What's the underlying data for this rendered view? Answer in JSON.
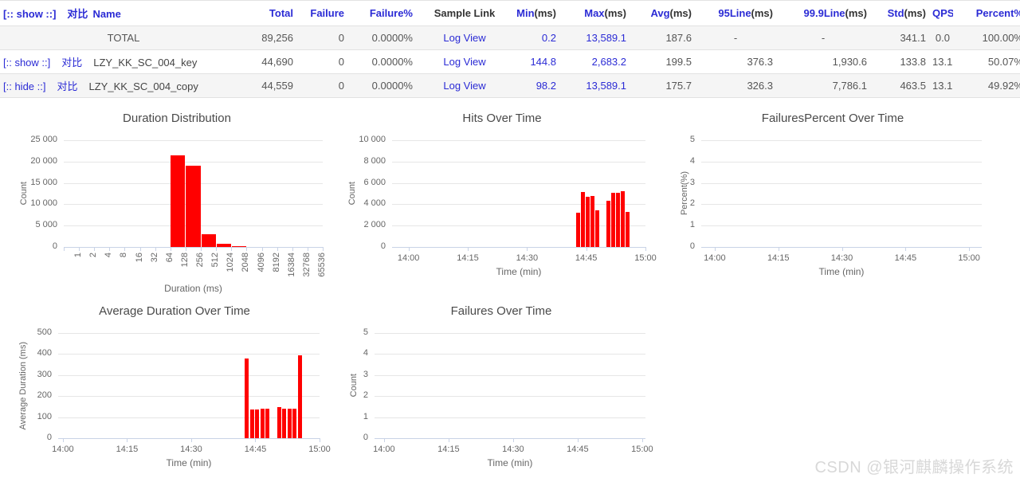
{
  "accent": {
    "link_color": "#2b2bd5",
    "bar_color": "#ff0000"
  },
  "table": {
    "header": {
      "show_label": "[:: show ::]",
      "compare_label": "对比",
      "name_label": "Name",
      "columns": [
        {
          "key": "total",
          "link": "Total",
          "suffix": "",
          "align": "r"
        },
        {
          "key": "failure",
          "link": "Failure",
          "suffix": "",
          "align": "r"
        },
        {
          "key": "failure_pct",
          "link": "Failure%",
          "suffix": "",
          "align": "r"
        },
        {
          "key": "sample_link",
          "link": "",
          "suffix": "Sample Link",
          "align": "c"
        },
        {
          "key": "min",
          "link": "Min",
          "suffix": "(ms)",
          "align": "r"
        },
        {
          "key": "max",
          "link": "Max",
          "suffix": "(ms)",
          "align": "r"
        },
        {
          "key": "avg",
          "link": "Avg",
          "suffix": "(ms)",
          "align": "r"
        },
        {
          "key": "p95",
          "link": "95Line",
          "suffix": "(ms)",
          "align": "r"
        },
        {
          "key": "p999",
          "link": "99.9Line",
          "suffix": "(ms)",
          "align": "r"
        },
        {
          "key": "std",
          "link": "Std",
          "suffix": "(ms)",
          "align": "r"
        },
        {
          "key": "qps",
          "link": "QPS",
          "suffix": "",
          "align": "r"
        },
        {
          "key": "percent",
          "link": "Percent%",
          "suffix": "",
          "align": "r"
        }
      ]
    },
    "rows": [
      {
        "toggle": "",
        "compare": "",
        "name": "TOTAL",
        "total": "89,256",
        "failure": "0",
        "failure_pct": "0.0000%",
        "sample_link": "Log View",
        "min": "0.2",
        "max": "13,589.1",
        "avg": "187.6",
        "p95": "-",
        "p999": "-",
        "std": "341.1",
        "qps": "0.0",
        "percent": "100.00%"
      },
      {
        "toggle": "[:: show ::]",
        "compare": "对比",
        "name": "LZY_KK_SC_004_key",
        "total": "44,690",
        "failure": "0",
        "failure_pct": "0.0000%",
        "sample_link": "Log View",
        "min": "144.8",
        "max": "2,683.2",
        "avg": "199.5",
        "p95": "376.3",
        "p999": "1,930.6",
        "std": "133.8",
        "qps": "13.1",
        "percent": "50.07%"
      },
      {
        "toggle": "[:: hide ::]",
        "compare": "对比",
        "name": "LZY_KK_SC_004_copy",
        "total": "44,559",
        "failure": "0",
        "failure_pct": "0.0000%",
        "sample_link": "Log View",
        "min": "98.2",
        "max": "13,589.1",
        "avg": "175.7",
        "p95": "326.3",
        "p999": "7,786.1",
        "std": "463.5",
        "qps": "13.1",
        "percent": "49.92%"
      }
    ]
  },
  "charts": [
    {
      "id": "duration-distribution",
      "type": "bar",
      "title": "Duration Distribution",
      "xlabel": "Duration (ms)",
      "ylabel": "Count",
      "ymax": 25000,
      "yticks": [
        {
          "v": 0,
          "label": "0"
        },
        {
          "v": 5000,
          "label": "5 000"
        },
        {
          "v": 10000,
          "label": "10 000"
        },
        {
          "v": 15000,
          "label": "15 000"
        },
        {
          "v": 20000,
          "label": "20 000"
        },
        {
          "v": 25000,
          "label": "25 000"
        }
      ],
      "xtype": "category",
      "categories": [
        "1",
        "2",
        "4",
        "8",
        "16",
        "32",
        "64",
        "128",
        "256",
        "512",
        "1024",
        "2048",
        "4096",
        "8192",
        "16384",
        "32768",
        "65536"
      ],
      "values": [
        0,
        0,
        0,
        0,
        0,
        0,
        0,
        21500,
        19000,
        2900,
        700,
        150,
        0,
        0,
        0,
        0,
        0
      ]
    },
    {
      "id": "hits-over-time",
      "type": "bar",
      "title": "Hits Over Time",
      "xlabel": "Time (min)",
      "ylabel": "Count",
      "ymax": 10000,
      "yticks": [
        {
          "v": 0,
          "label": "0"
        },
        {
          "v": 2000,
          "label": "2 000"
        },
        {
          "v": 4000,
          "label": "4 000"
        },
        {
          "v": 6000,
          "label": "6 000"
        },
        {
          "v": 8000,
          "label": "8 000"
        },
        {
          "v": 10000,
          "label": "10 000"
        }
      ],
      "xtype": "time",
      "xticks": [
        "14:00",
        "14:15",
        "14:30",
        "14:45",
        "15:00"
      ],
      "duration_min": 60,
      "bars": [
        {
          "m": 43.0,
          "v": 3200
        },
        {
          "m": 44.2,
          "v": 5150
        },
        {
          "m": 45.4,
          "v": 4700
        },
        {
          "m": 46.6,
          "v": 4800
        },
        {
          "m": 47.8,
          "v": 3400
        },
        {
          "m": 50.6,
          "v": 4350
        },
        {
          "m": 51.8,
          "v": 5100
        },
        {
          "m": 53.0,
          "v": 5050
        },
        {
          "m": 54.2,
          "v": 5250
        },
        {
          "m": 55.4,
          "v": 3300
        }
      ]
    },
    {
      "id": "failures-percent-over-time",
      "type": "bar",
      "title": "FailuresPercent Over Time",
      "xlabel": "Time (min)",
      "ylabel": "Percent(%)",
      "ymax": 5,
      "yticks": [
        {
          "v": 0,
          "label": "0"
        },
        {
          "v": 1,
          "label": "1"
        },
        {
          "v": 2,
          "label": "2"
        },
        {
          "v": 3,
          "label": "3"
        },
        {
          "v": 4,
          "label": "4"
        },
        {
          "v": 5,
          "label": "5"
        }
      ],
      "xtype": "time",
      "xticks": [
        "14:00",
        "14:15",
        "14:30",
        "14:45",
        "15:00"
      ],
      "duration_min": 60,
      "bars": []
    },
    {
      "id": "average-duration-over-time",
      "type": "bar",
      "title": "Average Duration Over Time",
      "xlabel": "Time (min)",
      "ylabel": "Average Duration (ms)",
      "ymax": 500,
      "yticks": [
        {
          "v": 0,
          "label": "0"
        },
        {
          "v": 100,
          "label": "100"
        },
        {
          "v": 200,
          "label": "200"
        },
        {
          "v": 300,
          "label": "300"
        },
        {
          "v": 400,
          "label": "400"
        },
        {
          "v": 500,
          "label": "500"
        }
      ],
      "xtype": "time",
      "xticks": [
        "14:00",
        "14:15",
        "14:30",
        "14:45",
        "15:00"
      ],
      "duration_min": 60,
      "bars": [
        {
          "m": 43.0,
          "v": 380
        },
        {
          "m": 44.2,
          "v": 135
        },
        {
          "m": 45.4,
          "v": 135
        },
        {
          "m": 46.6,
          "v": 140
        },
        {
          "m": 47.8,
          "v": 140
        },
        {
          "m": 50.6,
          "v": 148
        },
        {
          "m": 51.8,
          "v": 142
        },
        {
          "m": 53.0,
          "v": 140
        },
        {
          "m": 54.2,
          "v": 140
        },
        {
          "m": 55.4,
          "v": 395
        }
      ]
    },
    {
      "id": "failures-over-time",
      "type": "bar",
      "title": "Failures Over Time",
      "xlabel": "Time (min)",
      "ylabel": "Count",
      "ymax": 5,
      "yticks": [
        {
          "v": 0,
          "label": "0"
        },
        {
          "v": 1,
          "label": "1"
        },
        {
          "v": 2,
          "label": "2"
        },
        {
          "v": 3,
          "label": "3"
        },
        {
          "v": 4,
          "label": "4"
        },
        {
          "v": 5,
          "label": "5"
        }
      ],
      "xtype": "time",
      "xticks": [
        "14:00",
        "14:15",
        "14:30",
        "14:45",
        "15:00"
      ],
      "duration_min": 60,
      "bars": []
    }
  ],
  "watermark": {
    "text": "CSDN @银河麒麟操作系统"
  }
}
